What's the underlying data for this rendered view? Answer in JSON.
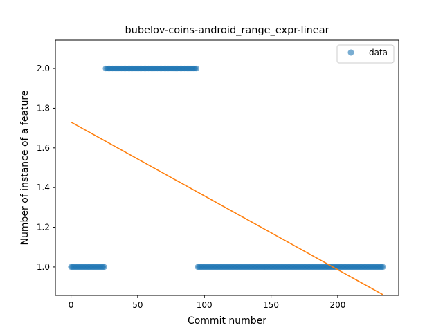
{
  "chart_data": {
    "type": "scatter",
    "title": "bubelov-coins-android_range_expr-linear",
    "xlabel": "Commit number",
    "ylabel": "Number of instance of a feature",
    "xlim": [
      -11.7,
      245.7
    ],
    "ylim": [
      0.8568,
      2.1432
    ],
    "xticks": [
      0,
      50,
      100,
      150,
      200
    ],
    "yticks": [
      1.0,
      1.2,
      1.4,
      1.6,
      1.8,
      2.0
    ],
    "ytick_labels": [
      "1.0",
      "1.2",
      "1.4",
      "1.6",
      "1.8",
      "2.0"
    ],
    "grid": false,
    "legend_position": "top-right",
    "series": [
      {
        "name": "data",
        "kind": "scatter",
        "color": "#1f77b4",
        "segments": [
          {
            "x_start": 0,
            "x_end": 25,
            "y": 1.0
          },
          {
            "x_start": 26,
            "x_end": 94,
            "y": 2.0
          },
          {
            "x_start": 95,
            "x_end": 234,
            "y": 1.0
          }
        ]
      },
      {
        "kind": "line",
        "color": "#ff7f0e",
        "x": [
          0,
          234
        ],
        "y": [
          1.73,
          0.86
        ]
      }
    ]
  }
}
